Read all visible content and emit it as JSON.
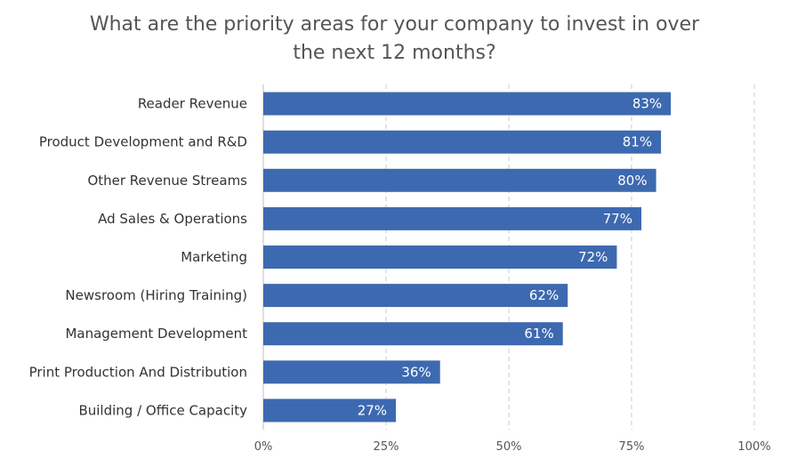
{
  "title_lines": [
    "What are the priority areas for your company to invest in over",
    "the next 12 months?"
  ],
  "colors": {
    "bar": "#3d69b0",
    "grid": "#c8c8c8",
    "axis": "#bfbfbf"
  },
  "chart_data": {
    "type": "bar",
    "orientation": "horizontal",
    "title": "What are the priority areas for your company to invest in over the next 12 months?",
    "categories": [
      "Reader Revenue",
      "Product Development and R&D",
      "Other Revenue Streams",
      "Ad Sales & Operations",
      "Marketing",
      "Newsroom (Hiring Training)",
      "Management Development",
      "Print Production And Distribution",
      "Building / Office Capacity"
    ],
    "values": [
      83,
      81,
      80,
      77,
      72,
      62,
      61,
      36,
      27
    ],
    "data_labels": [
      "83%",
      "81%",
      "80%",
      "77%",
      "72%",
      "62%",
      "61%",
      "36%",
      "27%"
    ],
    "xlim": [
      0,
      100
    ],
    "x_ticks": [
      0,
      25,
      50,
      75,
      100
    ],
    "x_tick_labels": [
      "0%",
      "25%",
      "50%",
      "75%",
      "100%"
    ],
    "grid": "vertical-dashed",
    "legend": "none"
  }
}
